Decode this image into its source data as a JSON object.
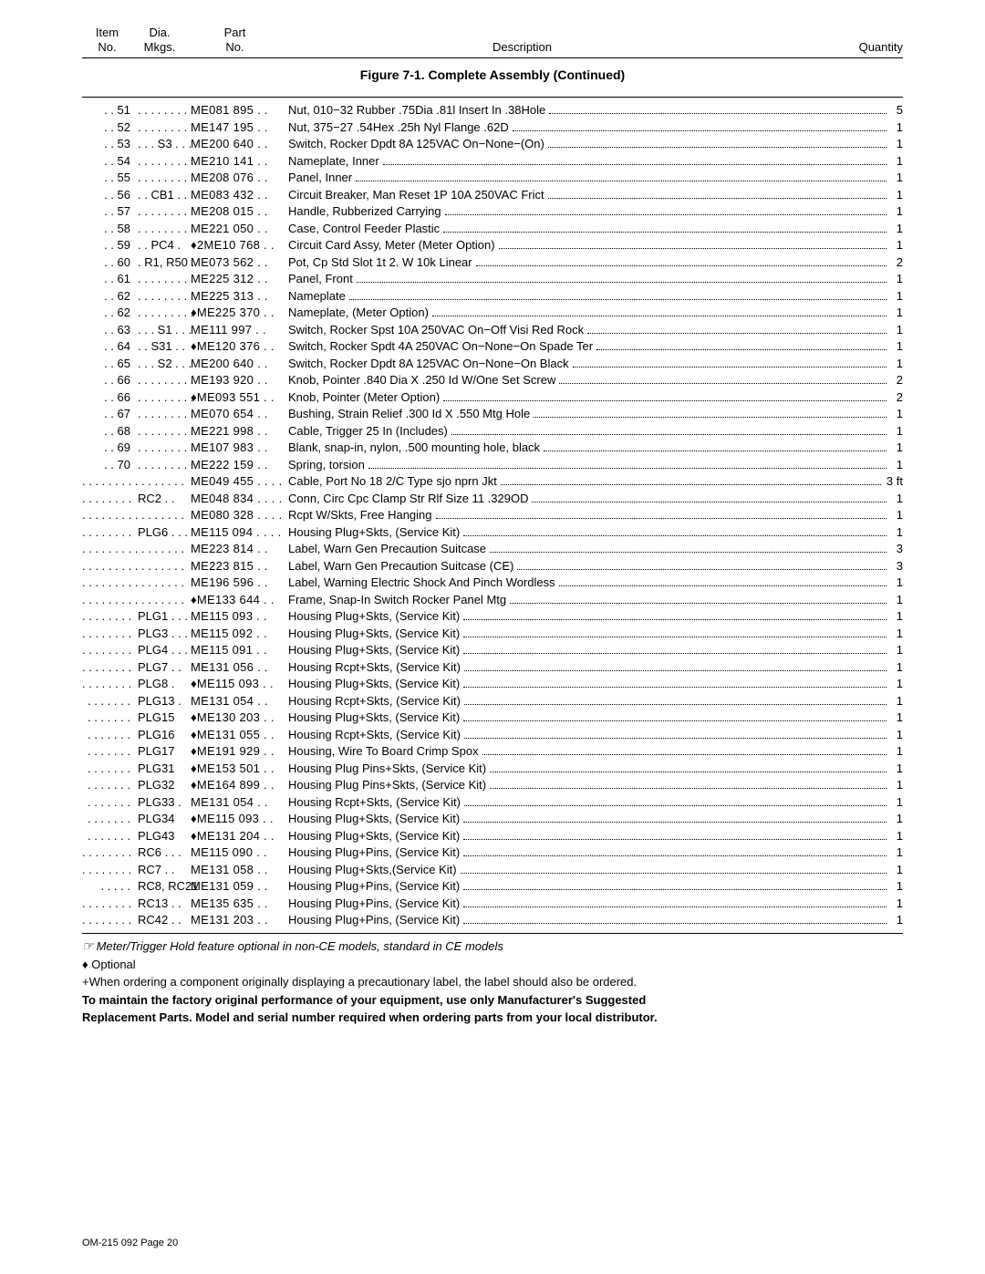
{
  "header": {
    "col1_top": "Item",
    "col1_bot": "No.",
    "col2_top": "Dia.",
    "col2_bot": "Mkgs.",
    "col3_top": "Part",
    "col3_bot": "No.",
    "col4": "Description",
    "col5": "Quantity"
  },
  "caption": "Figure 7-1. Complete Assembly (Continued)",
  "rows": [
    {
      "item": ". . 51",
      "dia": ". . . . . . . . .",
      "part": "ME081 895 . .",
      "desc": "Nut, 010−32 Rubber .75Dia .81l Insert In .38Hole",
      "qty": "5"
    },
    {
      "item": ". . 52",
      "dia": ". . . . . . . . .",
      "part": "ME147 195 . .",
      "desc": "Nut, 375−27 .54Hex .25h Nyl Flange .62D",
      "qty": "1"
    },
    {
      "item": ". . 53",
      "dia": ". . . S3 . . .",
      "part": "ME200 640 . .",
      "desc": "Switch, Rocker Dpdt 8A 125VAC On−None−(On)",
      "qty": "1"
    },
    {
      "item": ". . 54",
      "dia": ". . . . . . . . .",
      "part": "ME210 141 . .",
      "desc": "Nameplate, Inner",
      "qty": "1"
    },
    {
      "item": ". . 55",
      "dia": ". . . . . . . . .",
      "part": "ME208 076 . .",
      "desc": "Panel, Inner",
      "qty": "1"
    },
    {
      "item": ". . 56",
      "dia": ". . CB1 . .",
      "part": "ME083 432 . .",
      "desc": "Circuit Breaker, Man Reset 1P 10A 250VAC Frict",
      "qty": "1"
    },
    {
      "item": ". . 57",
      "dia": ". . . . . . . . .",
      "part": "ME208 015 . .",
      "desc": "Handle, Rubberized Carrying",
      "qty": "1"
    },
    {
      "item": ". . 58",
      "dia": ". . . . . . . . .",
      "part": "ME221 050 . .",
      "desc": "Case, Control Feeder Plastic",
      "qty": "1"
    },
    {
      "item": ". . 59",
      "dia": ". . PC4 .",
      "part": "♦2ME10 768 . .",
      "desc": "Circuit Card Assy, Meter (Meter Option)",
      "qty": "1"
    },
    {
      "item": ". . 60",
      "dia": ". R1, R50 .",
      "part": "ME073 562 . .",
      "desc": "Pot, Cp Std Slot 1t 2. W 10k Linear",
      "qty": "2"
    },
    {
      "item": ". . 61",
      "dia": ". . . . . . . . .",
      "part": "ME225 312 . .",
      "desc": "Panel, Front",
      "qty": "1"
    },
    {
      "item": ". . 62",
      "dia": ". . . . . . . . .",
      "part": "ME225 313 . .",
      "desc": "Nameplate",
      "qty": "1"
    },
    {
      "item": ". . 62",
      "dia": ". . . . . . . . .",
      "part": "♦ME225 370 . .",
      "desc": "Nameplate, (Meter Option)",
      "qty": "1"
    },
    {
      "item": ". . 63",
      "dia": ". . . S1 . . .",
      "part": "ME111 997 . .",
      "desc": "Switch, Rocker Spst 10A 250VAC On−Off Visi Red Rock",
      "qty": "1"
    },
    {
      "item": ". . 64",
      "dia": ". . S31 . .",
      "part": "♦ME120 376 . .",
      "desc": "Switch, Rocker Spdt 4A 250VAC On−None−On Spade Ter",
      "qty": "1"
    },
    {
      "item": ". . 65",
      "dia": ". . . S2 . . .",
      "part": "ME200 640 . .",
      "desc": "Switch, Rocker Dpdt 8A 125VAC On−None−On Black",
      "qty": "1"
    },
    {
      "item": ". . 66",
      "dia": ". . . . . . . . .",
      "part": "ME193 920 . .",
      "desc": "Knob, Pointer .840 Dia X .250 Id W/One Set Screw",
      "qty": "2"
    },
    {
      "item": ". . 66",
      "dia": ". . . . . . . . .",
      "part": "♦ME093 551 . .",
      "desc": "Knob, Pointer (Meter Option)",
      "qty": "2"
    },
    {
      "item": ". . 67",
      "dia": ". . . . . . . . .",
      "part": "ME070 654 . .",
      "desc": "Bushing, Strain Relief .300 Id X .550 Mtg Hole",
      "qty": "1"
    },
    {
      "item": ". . 68",
      "dia": ". . . . . . . . .",
      "part": "ME221 998 . .",
      "desc": "Cable, Trigger 25 In (Includes)",
      "qty": "1"
    },
    {
      "item": ". . 69",
      "dia": ". . . . . . . . .",
      "part": "ME107 983 . .",
      "desc": "Blank, snap-in, nylon, .500 mounting hole, black",
      "qty": "1"
    },
    {
      "item": ". . 70",
      "dia": ". . . . . . . . .",
      "part": "ME222 159 . .",
      "desc": "Spring, torsion",
      "qty": "1"
    },
    {
      "item": ". . . . . . . . . . . . . . . .",
      "dia": "",
      "part": "ME049 455 . . . .",
      "desc": "Cable, Port No 18 2/C Type sjo nprn Jkt",
      "qty": "3 ft"
    },
    {
      "item": ". . . . . . . .",
      "dia": "RC2 . .",
      "part": "ME048 834 . . . .",
      "desc": "Conn, Circ Cpc Clamp Str Rlf Size 11 .329OD",
      "qty": "1"
    },
    {
      "item": ". . . . . . . . . . . . . . . .",
      "dia": "",
      "part": "ME080 328 . . . .",
      "desc": "Rcpt W/Skts, Free Hanging",
      "qty": "1"
    },
    {
      "item": ". . . . . . . .",
      "dia": "PLG6 . . .",
      "part": "ME115 094 . . . .",
      "desc": "Housing Plug+Skts, (Service Kit)",
      "qty": "1"
    },
    {
      "item": ". . . . . . . . . . . . . . . .",
      "dia": "",
      "part": "ME223 814 . .",
      "desc": "Label, Warn Gen Precaution Suitcase",
      "qty": "3"
    },
    {
      "item": ". . . . . . . . . . . . . . . .",
      "dia": "",
      "part": "ME223 815 . .",
      "desc": "Label, Warn Gen Precaution Suitcase (CE)",
      "qty": "3"
    },
    {
      "item": ". . . . . . . . . . . . . . . .",
      "dia": "",
      "part": "ME196 596 . .",
      "desc": "Label, Warning Electric Shock And Pinch Wordless",
      "qty": "1"
    },
    {
      "item": ". . . . . . . . . . . . . . . .",
      "dia": "",
      "part": "♦ME133 644 . .",
      "desc": "Frame, Snap-In Switch Rocker Panel Mtg",
      "qty": "1"
    },
    {
      "item": ". . . . . . . .",
      "dia": "PLG1 . . .",
      "part": "ME115 093 . .",
      "desc": "Housing Plug+Skts, (Service Kit)",
      "qty": "1"
    },
    {
      "item": ". . . . . . . .",
      "dia": "PLG3 . . .",
      "part": "ME115 092 . .",
      "desc": "Housing Plug+Skts, (Service Kit)",
      "qty": "1"
    },
    {
      "item": ". . . . . . . .",
      "dia": "PLG4 . . .",
      "part": "ME115 091 . .",
      "desc": "Housing Plug+Skts, (Service Kit)",
      "qty": "1"
    },
    {
      "item": ". . . . . . . .",
      "dia": "PLG7 . .",
      "part": "ME131 056 . .",
      "desc": "Housing Rcpt+Skts, (Service Kit)",
      "qty": "1"
    },
    {
      "item": ". . . . . . . .",
      "dia": "PLG8 .",
      "part": "♦ME115 093 . .",
      "desc": "Housing Plug+Skts, (Service Kit)",
      "qty": "1"
    },
    {
      "item": ". . . . . . .",
      "dia": "PLG13 .",
      "part": "ME131 054 . .",
      "desc": "Housing Rcpt+Skts, (Service Kit)",
      "qty": "1"
    },
    {
      "item": ". . . . . . .",
      "dia": "PLG15",
      "part": "♦ME130 203 . .",
      "desc": "Housing Plug+Skts, (Service Kit)",
      "qty": "1"
    },
    {
      "item": ". . . . . . .",
      "dia": "PLG16",
      "part": "♦ME131 055 . .",
      "desc": "Housing Rcpt+Skts, (Service Kit)",
      "qty": "1"
    },
    {
      "item": ". . . . . . .",
      "dia": "PLG17",
      "part": "♦ME191 929 . .",
      "desc": "Housing, Wire To Board Crimp Spox",
      "qty": "1"
    },
    {
      "item": ". . . . . . .",
      "dia": "PLG31",
      "part": "♦ME153 501 . .",
      "desc": "Housing Plug Pins+Skts, (Service Kit)",
      "qty": "1"
    },
    {
      "item": ". . . . . . .",
      "dia": "PLG32",
      "part": "♦ME164 899 . .",
      "desc": "Housing Plug Pins+Skts, (Service Kit)",
      "qty": "1"
    },
    {
      "item": ". . . . . . .",
      "dia": "PLG33 .",
      "part": "ME131 054 . .",
      "desc": "Housing Rcpt+Skts, (Service Kit)",
      "qty": "1"
    },
    {
      "item": ". . . . . . .",
      "dia": "PLG34",
      "part": "♦ME115 093 . .",
      "desc": "Housing Plug+Skts, (Service Kit)",
      "qty": "1"
    },
    {
      "item": ". . . . . . .",
      "dia": "PLG43",
      "part": "♦ME131 204 . .",
      "desc": "Housing Plug+Skts, (Service Kit)",
      "qty": "1"
    },
    {
      "item": ". . . . . . . .",
      "dia": "RC6 . . .",
      "part": "ME115 090 . .",
      "desc": "Housing Plug+Pins, (Service Kit)",
      "qty": "1"
    },
    {
      "item": ". . . . . . . .",
      "dia": "RC7 . .",
      "part": "ME131 058 . .",
      "desc": "Housing Plug+Skts,(Service Kit)",
      "qty": "1"
    },
    {
      "item": ". . . . .",
      "dia": "RC8, RC21",
      "part": "ME131 059 . .",
      "desc": "Housing Plug+Pins, (Service Kit)",
      "qty": "1"
    },
    {
      "item": ". . . . . . . .",
      "dia": "RC13 . .",
      "part": "ME135 635 . .",
      "desc": "Housing Plug+Pins, (Service Kit)",
      "qty": "1"
    },
    {
      "item": ". . . . . . . .",
      "dia": "RC42 . .",
      "part": "ME131 203 . .",
      "desc": "Housing Plug+Pins, (Service Kit)",
      "qty": "1"
    }
  ],
  "footnotes": {
    "note1": "Meter/Trigger Hold feature optional in non-CE models, standard in CE models",
    "note2": "♦ Optional",
    "note3": "+When ordering a component originally displaying a precautionary label, the label should also be ordered.",
    "note4a": "To maintain the factory original performance of your equipment, use only Manufacturer's Suggested",
    "note4b": "Replacement Parts. Model and serial number required when ordering parts from your local distributor."
  },
  "pagefoot": "OM-215 092 Page 20"
}
